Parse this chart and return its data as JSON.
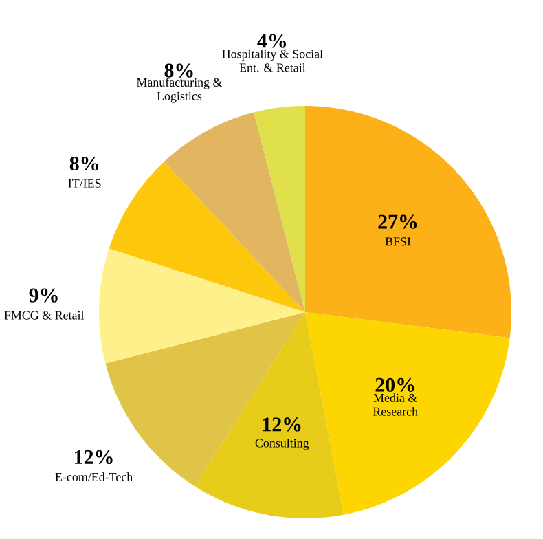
{
  "chart_data": {
    "type": "pie",
    "categories": [
      "BFSI",
      "Media & Research",
      "Consulting",
      "E-com/Ed-Tech",
      "FMCG & Retail",
      "IT/IES",
      "Manufacturing & Logistics",
      "Hospitality & Social Ent. & Retail"
    ],
    "values": [
      27,
      20,
      12,
      12,
      9,
      8,
      8,
      4
    ],
    "value_labels": [
      "27%",
      "20%",
      "12%",
      "12%",
      "9%",
      "8%",
      "8%",
      "4%"
    ],
    "colors": [
      "#fbb117",
      "#fdd500",
      "#e8cc1a",
      "#dfc447",
      "#fef08a",
      "#fdc70c",
      "#e2b560",
      "#dfe04c"
    ]
  }
}
